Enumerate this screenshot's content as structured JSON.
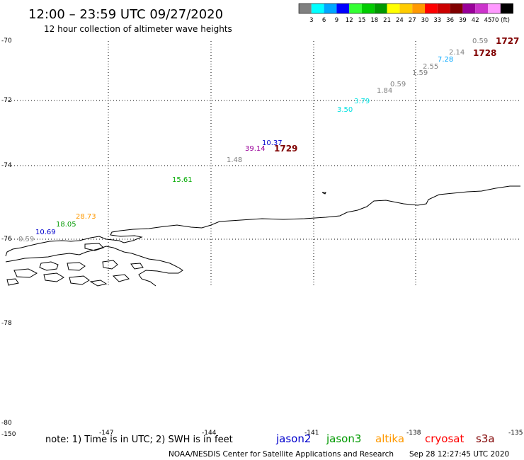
{
  "title": "12:00 – 23:59 UTC 09/27/2020",
  "subtitle": "12 hour collection of altimeter wave heights",
  "color_scale": {
    "labels": [
      "3",
      "6",
      "9",
      "12",
      "15",
      "18",
      "21",
      "24",
      "27",
      "30",
      "33",
      "36",
      "39",
      "42",
      "45",
      "70 (ft)"
    ],
    "colors": [
      "#808080",
      "#00ffff",
      "#00a6ff",
      "#0000ff",
      "#33ff33",
      "#00cc00",
      "#009900",
      "#ffff00",
      "#ffcc00",
      "#ff9900",
      "#ff0000",
      "#cc0000",
      "#800000",
      "#990099",
      "#cc33cc",
      "#ff99ff",
      "#000000"
    ]
  },
  "axes": {
    "lat_labels": [
      "-70",
      "-72",
      "-74",
      "-76",
      "-78",
      "-80"
    ],
    "lon_labels": [
      "-150",
      "-147",
      "-144",
      "-141",
      "-138",
      "-135"
    ]
  },
  "observations": [
    {
      "text": "0.59",
      "color": "#808080"
    },
    {
      "text": "2.14",
      "color": "#808080"
    },
    {
      "text": "7.28",
      "color": "#00a6ff"
    },
    {
      "text": "2.55",
      "color": "#808080"
    },
    {
      "text": "1.59",
      "color": "#808080"
    },
    {
      "text": "0.59",
      "color": "#808080"
    },
    {
      "text": "1.84",
      "color": "#808080"
    },
    {
      "text": "3.79",
      "color": "#00e0e0"
    },
    {
      "text": "3.50",
      "color": "#00e0e0"
    },
    {
      "text": "10.37",
      "color": "#0000cc"
    },
    {
      "text": "39.14",
      "color": "#990099"
    },
    {
      "text": "1.48",
      "color": "#808080"
    },
    {
      "text": "15.61",
      "color": "#00aa00"
    },
    {
      "text": "28.73",
      "color": "#ff9900"
    },
    {
      "text": "18.05",
      "color": "#009900"
    },
    {
      "text": "10.69",
      "color": "#0000cc"
    },
    {
      "text": "0.59",
      "color": "#808080"
    }
  ],
  "passes": [
    {
      "text": "1727",
      "color": "#800000"
    },
    {
      "text": "1728",
      "color": "#800000"
    },
    {
      "text": "1729",
      "color": "#800000"
    }
  ],
  "note": "note:  1) Time is in UTC;  2) SWH is in feet",
  "satellites": [
    {
      "name": "jason2",
      "color": "#0000cc"
    },
    {
      "name": "jason3",
      "color": "#009900"
    },
    {
      "name": "altika",
      "color": "#ff9900"
    },
    {
      "name": "cryosat",
      "color": "#ff0000"
    },
    {
      "name": "s3a",
      "color": "#800000"
    }
  ],
  "credit": "NOAA/NESDIS Center for Satellite Applications and Research",
  "timestamp": "Sep 28 12:27:45 UTC 2020"
}
